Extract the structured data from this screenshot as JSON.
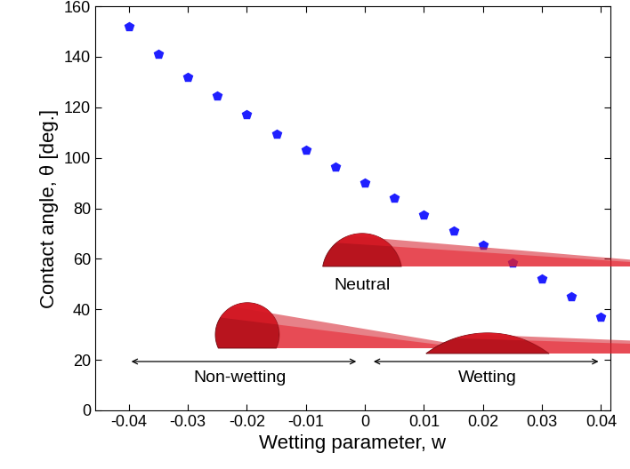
{
  "chart_data": {
    "type": "scatter",
    "x": [
      -0.04,
      -0.035,
      -0.03,
      -0.025,
      -0.02,
      -0.015,
      -0.01,
      -0.005,
      0,
      0.005,
      0.01,
      0.015,
      0.02,
      0.025,
      0.03,
      0.035,
      0.04
    ],
    "values": [
      152,
      141,
      132,
      124.5,
      117,
      109.5,
      103,
      96.5,
      90,
      84,
      77.5,
      71,
      65.5,
      58.5,
      52,
      45,
      37
    ],
    "color": "#1f1fff",
    "marker": "pentagon",
    "xlabel": "Wetting parameter, w",
    "ylabel": "Contact angle, θ [deg.]",
    "xlim": [
      -0.0457,
      0.0416
    ],
    "ylim": [
      0,
      160
    ],
    "xticks": [
      -0.04,
      -0.03,
      -0.02,
      -0.01,
      0,
      0.01,
      0.02,
      0.03,
      0.04
    ],
    "yticks": [
      0,
      20,
      40,
      60,
      80,
      100,
      120,
      140,
      160
    ],
    "annotations": [
      "Neutral",
      "Non-wetting",
      "Wetting"
    ]
  }
}
